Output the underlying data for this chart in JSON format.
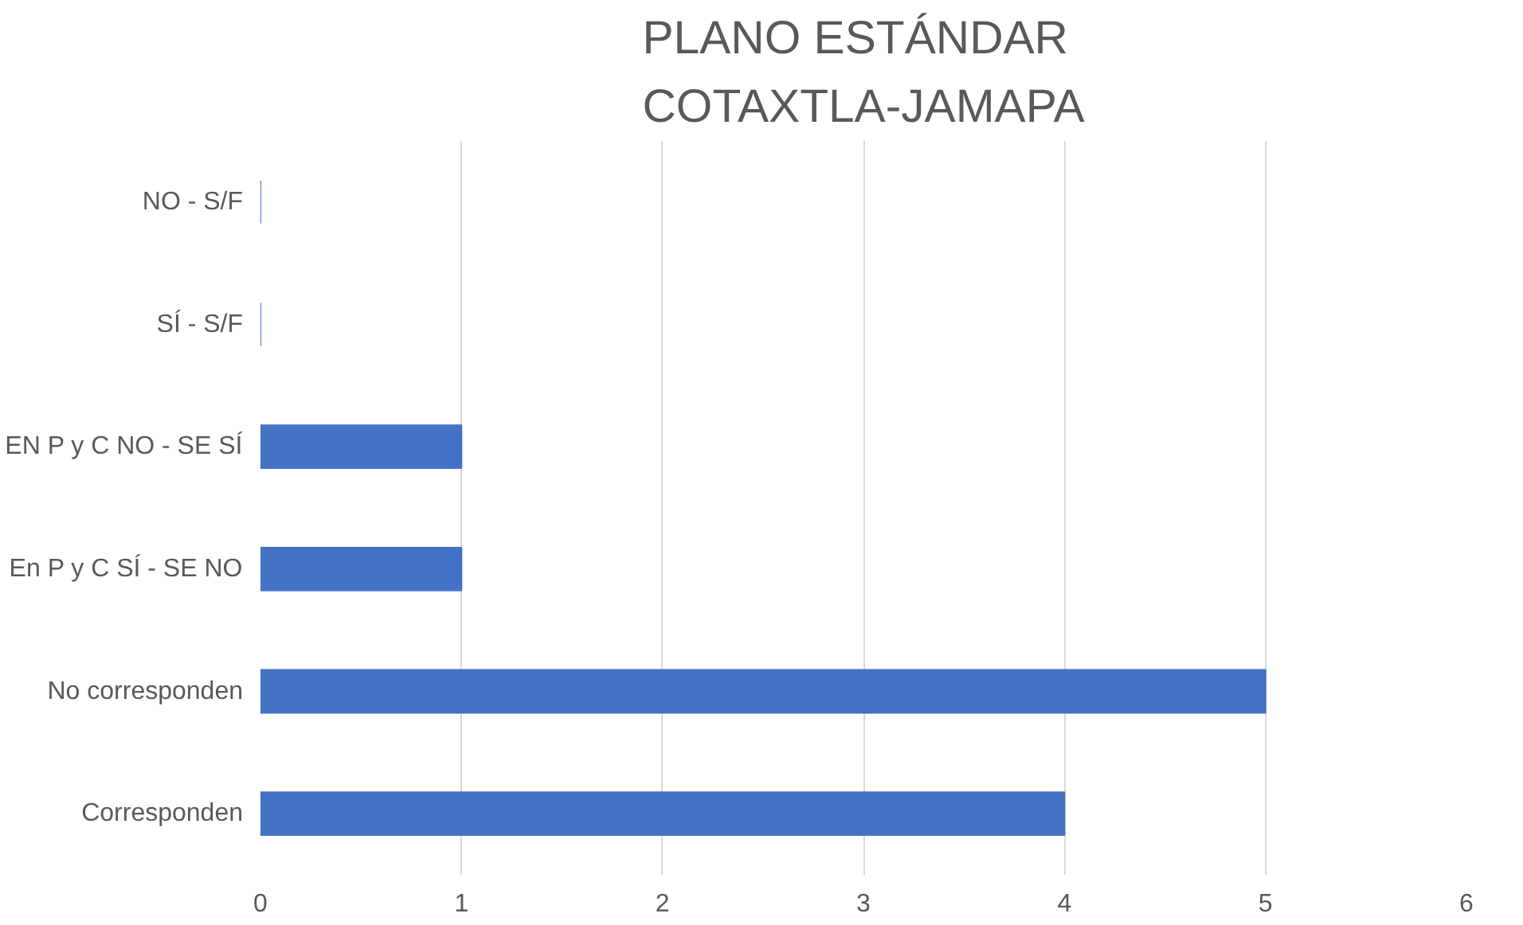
{
  "chart_data": {
    "type": "bar",
    "orientation": "horizontal",
    "title": "PLANO ESTÁNDAR\nCOTAXTLA-JAMAPA",
    "categories": [
      "NO - S/F",
      "SÍ - S/F",
      "EN P y C NO - SE SÍ",
      "En P y C SÍ - SE NO",
      "No corresponden",
      "Corresponden"
    ],
    "values": [
      0,
      0,
      1,
      1,
      5,
      4
    ],
    "color": "#4472c4",
    "xlim": [
      0,
      6
    ],
    "xticks": [
      0,
      1,
      2,
      3,
      4,
      5,
      6
    ],
    "grid": "x"
  }
}
